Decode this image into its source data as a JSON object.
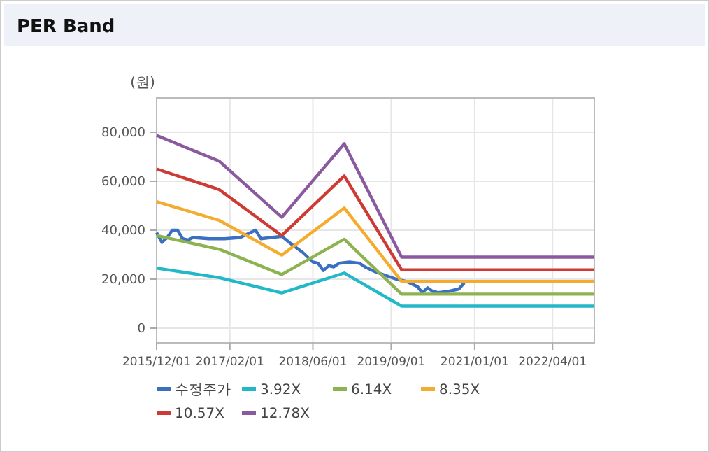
{
  "chart_data": {
    "type": "line",
    "title": "PER Band",
    "ylabel": "(원)",
    "x": [
      "2015-12-01",
      "2016-12-01",
      "2017-12-01",
      "2018-12-01",
      "2019-11-01",
      "2022-12-01"
    ],
    "xlim": [
      "2015-12-01",
      "2022-12-01"
    ],
    "xticks": [
      {
        "value": "2015-12-01",
        "label": "2015/12/01"
      },
      {
        "value": "2017-02-01",
        "label": "2017/02/01"
      },
      {
        "value": "2018-06-01",
        "label": "2018/06/01"
      },
      {
        "value": "2019-09-01",
        "label": "2019/09/01"
      },
      {
        "value": "2021-01-01",
        "label": "2021/01/01"
      },
      {
        "value": "2022-04-01",
        "label": "2022/04/01"
      }
    ],
    "ylim": [
      -6000,
      94000
    ],
    "yticks": [
      {
        "value": 0,
        "label": "0"
      },
      {
        "value": 20000,
        "label": "20,000"
      },
      {
        "value": 40000,
        "label": "40,000"
      },
      {
        "value": 60000,
        "label": "60,000"
      },
      {
        "value": 80000,
        "label": "80,000"
      }
    ],
    "grid": true,
    "legend": "bottom",
    "line_style": "solid",
    "series": [
      {
        "name": "수정주가",
        "color": "#3a6fc1",
        "x": [
          "2015-12-01",
          "2016-01-01",
          "2016-02-01",
          "2016-03-01",
          "2016-04-01",
          "2016-05-01",
          "2016-06-01",
          "2016-07-01",
          "2016-10-01",
          "2017-01-01",
          "2017-04-01",
          "2017-07-01",
          "2017-08-01",
          "2017-10-01",
          "2017-12-01",
          "2018-02-01",
          "2018-04-01",
          "2018-06-01",
          "2018-07-01",
          "2018-08-01",
          "2018-09-01",
          "2018-10-01",
          "2018-11-01",
          "2019-01-01",
          "2019-03-01",
          "2019-04-01",
          "2019-06-01",
          "2019-08-01",
          "2019-10-01",
          "2019-12-01",
          "2020-02-01",
          "2020-03-01",
          "2020-04-01",
          "2020-05-01",
          "2020-06-01",
          "2020-08-01",
          "2020-10-01",
          "2020-11-01"
        ],
        "values": [
          39000,
          35000,
          37000,
          40000,
          40000,
          36500,
          36000,
          37000,
          36500,
          36500,
          37000,
          40000,
          36500,
          37000,
          37500,
          34000,
          31000,
          27000,
          26500,
          23500,
          25500,
          25000,
          26500,
          27000,
          26500,
          25000,
          23000,
          21500,
          20000,
          19000,
          17000,
          14500,
          16500,
          15000,
          14500,
          15000,
          16000,
          18500
        ]
      },
      {
        "name": "3.92X",
        "color": "#22b8c8",
        "values": [
          24500,
          20600,
          14400,
          22500,
          9000,
          9000
        ]
      },
      {
        "name": "6.14X",
        "color": "#8db351",
        "values": [
          37800,
          32200,
          21900,
          36300,
          13900,
          13900
        ]
      },
      {
        "name": "8.35X",
        "color": "#f5ac2e",
        "values": [
          51700,
          44000,
          29800,
          49100,
          19100,
          19100
        ]
      },
      {
        "name": "10.57X",
        "color": "#cf3a34",
        "values": [
          65000,
          56600,
          37800,
          62200,
          23800,
          23800
        ]
      },
      {
        "name": "12.78X",
        "color": "#8b5a9e",
        "values": [
          78700,
          68200,
          45300,
          75300,
          29000,
          29000
        ]
      }
    ]
  }
}
